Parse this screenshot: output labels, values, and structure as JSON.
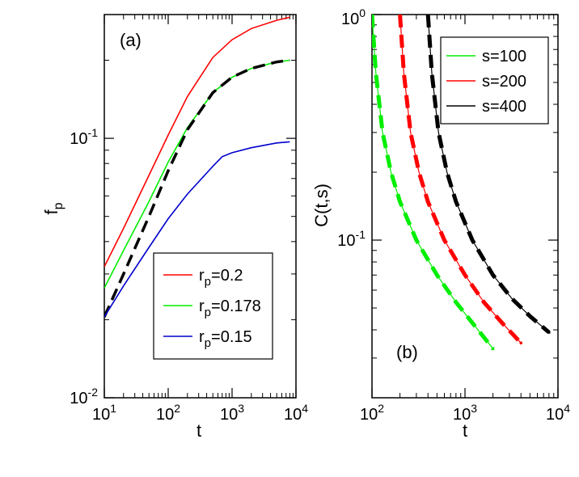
{
  "chart_data": [
    {
      "type": "line",
      "panel_label": "(a)",
      "xscale": "log",
      "yscale": "log",
      "xlim": [
        10,
        10000
      ],
      "ylim": [
        0.01,
        0.3
      ],
      "xlabel": "t",
      "ylabel": "f",
      "ylabel_sub": "p",
      "xticks": [
        {
          "base": "10",
          "exp": "1"
        },
        {
          "base": "10",
          "exp": "2"
        },
        {
          "base": "10",
          "exp": "3"
        },
        {
          "base": "10",
          "exp": "4"
        }
      ],
      "yticks": [
        {
          "base": "10",
          "exp": "-2"
        },
        {
          "base": "10",
          "exp": "-1"
        }
      ],
      "legend": {
        "placement": "bottom-right",
        "entries": [
          {
            "main": "r",
            "sub": "p",
            "tail": "=0.2"
          },
          {
            "main": "r",
            "sub": "p",
            "tail": "=0.178"
          },
          {
            "main": "r",
            "sub": "p",
            "tail": "=0.15"
          }
        ]
      },
      "series": [
        {
          "name": "rp=0.2",
          "color": "#ff0000",
          "style": "solid",
          "x": [
            10,
            20,
            50,
            100,
            200,
            500,
            1000,
            2000,
            5000,
            8000
          ],
          "y": [
            0.032,
            0.045,
            0.072,
            0.103,
            0.145,
            0.205,
            0.24,
            0.265,
            0.285,
            0.293
          ]
        },
        {
          "name": "rp=0.178",
          "color": "#00ee00",
          "style": "solid",
          "x": [
            10,
            20,
            50,
            100,
            200,
            500,
            1000,
            2000,
            5000,
            8000
          ],
          "y": [
            0.0265,
            0.037,
            0.057,
            0.081,
            0.11,
            0.15,
            0.172,
            0.186,
            0.197,
            0.2
          ]
        },
        {
          "name": "fit",
          "color": "#000000",
          "style": "dashed",
          "x": [
            10,
            20,
            50,
            100,
            200,
            500,
            1000,
            2000,
            5000,
            8000
          ],
          "y": [
            0.0205,
            0.03,
            0.05,
            0.075,
            0.108,
            0.15,
            0.172,
            0.186,
            0.197,
            0.2
          ]
        },
        {
          "name": "rp=0.15",
          "color": "#0000cc",
          "style": "solid",
          "x": [
            10,
            20,
            50,
            100,
            200,
            500,
            700,
            1000,
            2000,
            5000,
            8000
          ],
          "y": [
            0.0205,
            0.027,
            0.038,
            0.049,
            0.061,
            0.078,
            0.085,
            0.088,
            0.092,
            0.096,
            0.097
          ]
        }
      ]
    },
    {
      "type": "line",
      "panel_label": "(b)",
      "xscale": "log",
      "yscale": "log",
      "xlim": [
        100,
        10000
      ],
      "ylim": [
        0.02,
        1
      ],
      "xlabel": "t",
      "ylabel": "C(t,s)",
      "xticks": [
        {
          "base": "10",
          "exp": "2"
        },
        {
          "base": "10",
          "exp": "3"
        },
        {
          "base": "10",
          "exp": "4"
        }
      ],
      "yticks": [
        {
          "base": "10",
          "exp": "-1"
        },
        {
          "base": "10",
          "exp": "0"
        }
      ],
      "legend": {
        "placement": "top-right",
        "entries": [
          {
            "main": "s=100"
          },
          {
            "main": "s=200"
          },
          {
            "main": "s=400"
          }
        ]
      },
      "series": [
        {
          "name": "s=100",
          "color": "#00ee00",
          "fit_color": "#00ee00",
          "x": [
            100,
            110,
            130,
            160,
            200,
            300,
            500,
            800,
            1200,
            2000
          ],
          "y": [
            1.0,
            0.55,
            0.3,
            0.2,
            0.148,
            0.1,
            0.07,
            0.053,
            0.043,
            0.033
          ]
        },
        {
          "name": "s=200",
          "color": "#ff0000",
          "fit_color": "#ff0000",
          "x": [
            200,
            220,
            260,
            320,
            400,
            600,
            1000,
            1600,
            2500,
            4000
          ],
          "y": [
            1.0,
            0.55,
            0.3,
            0.2,
            0.148,
            0.1,
            0.07,
            0.053,
            0.043,
            0.035
          ]
        },
        {
          "name": "s=400",
          "color": "#000000",
          "fit_color": "#000000",
          "x": [
            400,
            440,
            520,
            640,
            800,
            1200,
            2000,
            3200,
            5000,
            8000
          ],
          "y": [
            1.0,
            0.55,
            0.3,
            0.2,
            0.148,
            0.1,
            0.07,
            0.055,
            0.046,
            0.039
          ]
        }
      ]
    }
  ]
}
